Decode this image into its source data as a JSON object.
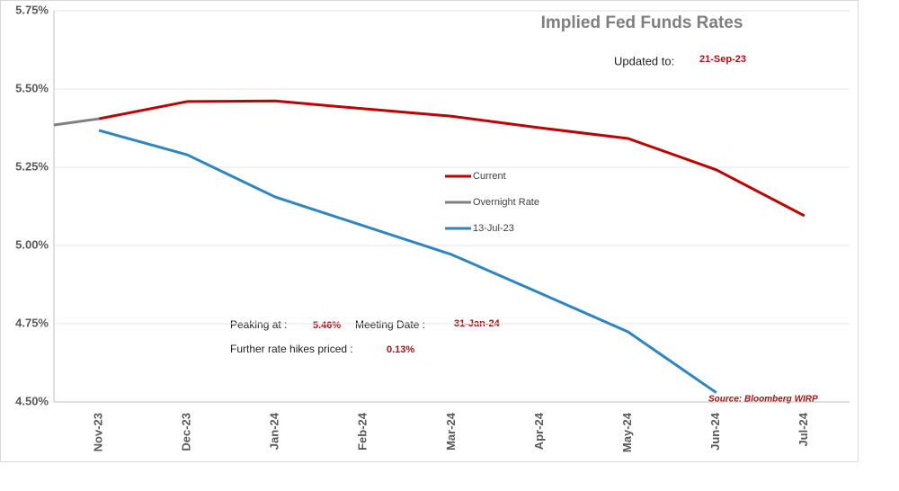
{
  "chart_data": {
    "type": "line",
    "title": "Implied Fed Funds Rates",
    "categories": [
      null,
      "Nov-23",
      "Dec-23",
      "Jan-24",
      "Feb-24",
      "Mar-24",
      "Apr-24",
      "May-24",
      "Jun-24",
      "Jul-24"
    ],
    "series": [
      {
        "name": "Current",
        "color": "#c00000",
        "values": [
          null,
          5.405,
          5.46,
          5.462,
          5.437,
          5.413,
          5.376,
          5.342,
          5.242,
          5.095
        ]
      },
      {
        "name": "Overnight Rate",
        "color": "#7f7f7f",
        "values": [
          5.385,
          5.405,
          null,
          null,
          null,
          null,
          null,
          null,
          null,
          null
        ]
      },
      {
        "name": "13-Jul-23",
        "color": "#2e86c1",
        "values": [
          null,
          5.368,
          5.29,
          5.155,
          5.063,
          4.971,
          4.848,
          4.724,
          4.53,
          null
        ]
      }
    ],
    "ylim": [
      4.5,
      5.75
    ],
    "yticks": [
      {
        "value": 4.5,
        "label": "4.50%"
      },
      {
        "value": 4.75,
        "label": "4.75%"
      },
      {
        "value": 5.0,
        "label": "5.00%"
      },
      {
        "value": 5.25,
        "label": "5.25%"
      },
      {
        "value": 5.5,
        "label": "5.50%"
      },
      {
        "value": 5.75,
        "label": "5.75%"
      }
    ],
    "grid": true,
    "annotations": {
      "updated_label": "Updated to:",
      "updated_date": "21-Sep-23",
      "peak_label": "Peaking at :",
      "peak_value": "5.46%",
      "meeting_label": "Meeting Date :",
      "meeting_date": "31-Jan-24",
      "hikes_label": "Further rate hikes priced :",
      "hikes_value": "0.13%",
      "source": "Source: Bloomberg WIRP"
    }
  }
}
